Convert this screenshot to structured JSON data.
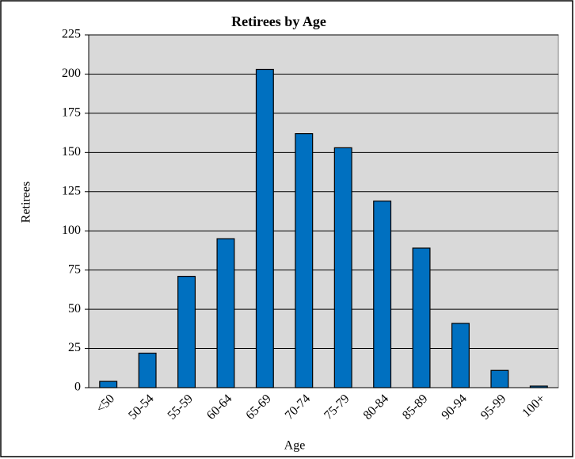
{
  "chart_data": {
    "type": "bar",
    "title": "Retirees by Age",
    "x_label": "Age",
    "y_label": "Retirees",
    "categories": [
      "<50",
      "50-54",
      "55-59",
      "60-64",
      "65-69",
      "70-74",
      "75-79",
      "80-84",
      "85-89",
      "90-94",
      "95-99",
      "100+"
    ],
    "values": [
      4,
      22,
      71,
      95,
      203,
      162,
      153,
      119,
      89,
      41,
      11,
      1
    ],
    "color": "#0070c0",
    "ylim": [
      0,
      225
    ],
    "yticks": [
      0,
      25,
      50,
      75,
      100,
      125,
      150,
      175,
      200,
      225
    ],
    "grid": true
  }
}
